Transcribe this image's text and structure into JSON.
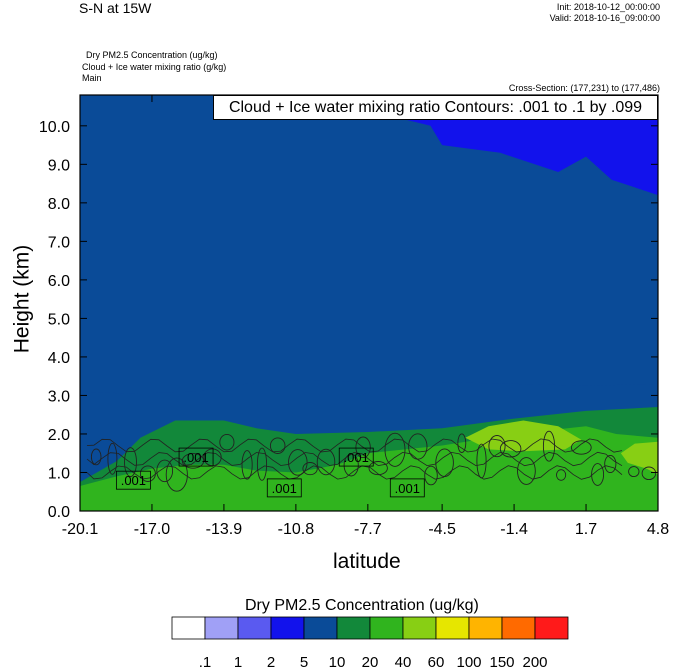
{
  "header": {
    "title": "S-N at 15W",
    "init": "Init: 2018-10-12_00:00:00",
    "valid": "Valid: 2018-10-16_09:00:00"
  },
  "fields": {
    "line1": "Dry PM2.5 Concentration   (ug/kg)",
    "line2": "Cloud + Ice water mixing ratio   (g/kg)",
    "line3": "Main"
  },
  "cross_section": "Cross-Section: (177,231) to (177,486)",
  "contour_info": "Cloud + Ice water mixing ratio Contours: .001 to .1 by .099",
  "contour_labels": [
    ".001",
    ".001",
    ".001",
    ".001",
    ".001"
  ],
  "colorbar": {
    "title": "Dry PM2.5 Concentration  (ug/kg)",
    "labels": [
      ".1",
      "1",
      "2",
      "5",
      "10",
      "20",
      "40",
      "60",
      "100",
      "150",
      "200"
    ],
    "colors": [
      "#ffffff",
      "#a0a0f6",
      "#5a5af0",
      "#1212ec",
      "#0a4b98",
      "#12883a",
      "#30b41e",
      "#88cf14",
      "#e6e600",
      "#ffb400",
      "#ff6a00",
      "#ff1a1a"
    ]
  },
  "chart_data": {
    "type": "heatmap",
    "xlabel": "latitude",
    "ylabel": "Height (km)",
    "x_ticks": [
      "-20.1",
      "-17.0",
      "-13.9",
      "-10.8",
      "-7.7",
      "-4.5",
      "-1.4",
      "1.7",
      "4.8"
    ],
    "y_ticks": [
      "0.0",
      "1.0",
      "2.0",
      "3.0",
      "4.0",
      "5.0",
      "6.0",
      "7.0",
      "8.0",
      "9.0",
      "10.0"
    ],
    "xlim": [
      -20.1,
      4.8
    ],
    "ylim": [
      0,
      10.8
    ],
    "layers": [
      {
        "level": "5",
        "top": [
          [
            -20.1,
            10.8
          ],
          [
            -10.8,
            10.8
          ],
          [
            -7.7,
            10.4
          ],
          [
            -5,
            10.0
          ],
          [
            -4.5,
            9.5
          ],
          [
            -2,
            9.3
          ],
          [
            0.5,
            8.8
          ],
          [
            1.7,
            9.2
          ],
          [
            2.8,
            8.6
          ],
          [
            4.8,
            8.2
          ]
        ]
      },
      {
        "level": "5",
        "top": [
          [
            -20.1,
            3.1
          ],
          [
            -18,
            3.05
          ],
          [
            -15,
            3.1
          ],
          [
            -13.9,
            3.25
          ],
          [
            -12,
            3.35
          ],
          [
            -10.8,
            3.4
          ],
          [
            -7.7,
            3.35
          ],
          [
            -4.5,
            3.35
          ],
          [
            -1.4,
            3.3
          ],
          [
            1.7,
            3.25
          ],
          [
            4.8,
            3.3
          ]
        ]
      },
      {
        "level": "10",
        "top": [
          [
            -20.1,
            0.75
          ],
          [
            -18.5,
            1.3
          ],
          [
            -17.5,
            1.9
          ],
          [
            -16,
            2.35
          ],
          [
            -13.9,
            2.35
          ],
          [
            -12.5,
            2.15
          ],
          [
            -10.8,
            2.0
          ],
          [
            -7.7,
            2.05
          ],
          [
            -4.5,
            2.15
          ],
          [
            -1.4,
            2.4
          ],
          [
            1.7,
            2.6
          ],
          [
            4.8,
            2.7
          ]
        ]
      },
      {
        "level": "20",
        "top": [
          [
            -20.1,
            0.65
          ],
          [
            -18.5,
            0.9
          ],
          [
            -17,
            1.1
          ],
          [
            -15.5,
            1.2
          ],
          [
            -13.9,
            1.2
          ],
          [
            -12.5,
            1.05
          ],
          [
            -10.8,
            1.0
          ],
          [
            -9,
            1.2
          ],
          [
            -7.7,
            1.5
          ],
          [
            -4.5,
            1.7
          ],
          [
            -1.4,
            2.0
          ],
          [
            1.7,
            2.2
          ],
          [
            3,
            2.0
          ],
          [
            4.8,
            1.9
          ]
        ]
      },
      {
        "level": "40",
        "top": [
          [
            -3.5,
            1.9
          ],
          [
            -2.5,
            2.2
          ],
          [
            -1,
            2.35
          ],
          [
            0.5,
            2.2
          ],
          [
            1.5,
            1.85
          ],
          [
            0.8,
            1.6
          ],
          [
            -1,
            1.55
          ],
          [
            -2.5,
            1.6
          ],
          [
            -3.5,
            1.9
          ]
        ]
      },
      {
        "level": "40",
        "top": [
          [
            3.2,
            1.5
          ],
          [
            3.8,
            1.75
          ],
          [
            4.8,
            1.8
          ],
          [
            4.8,
            0.95
          ],
          [
            4.3,
            1.1
          ],
          [
            3.5,
            1.25
          ],
          [
            3.2,
            1.5
          ]
        ]
      }
    ]
  }
}
